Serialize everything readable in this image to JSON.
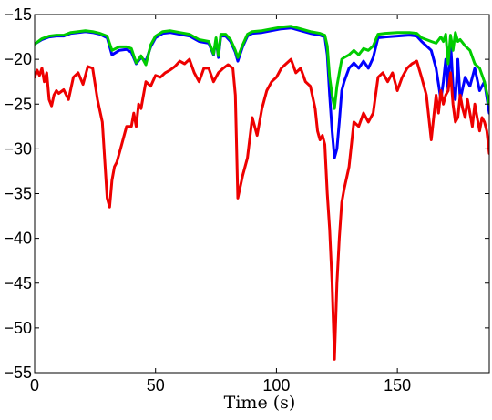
{
  "chart_data": {
    "type": "line",
    "title": "",
    "xlabel": "Time (s)",
    "ylabel": "",
    "xlim": [
      0,
      188
    ],
    "ylim": [
      -55,
      -15
    ],
    "xticks": [
      0,
      50,
      100,
      150
    ],
    "yticks": [
      -55,
      -50,
      -45,
      -40,
      -35,
      -30,
      -25,
      -20,
      -15
    ],
    "grid": false,
    "legend": "none",
    "series": [
      {
        "color": "#0000ff",
        "x": [
          0,
          3,
          6,
          9,
          12,
          15,
          18,
          21,
          24,
          27,
          30,
          32,
          35,
          38,
          40,
          42,
          44,
          46,
          48,
          50,
          53,
          56,
          60,
          64,
          68,
          72,
          74,
          75,
          76,
          77,
          79,
          81,
          83,
          84,
          86,
          88,
          90,
          94,
          98,
          102,
          106,
          110,
          114,
          118,
          120,
          121,
          122,
          123,
          124,
          125,
          126,
          127,
          128,
          130,
          132,
          134,
          136,
          138,
          140,
          142,
          145,
          150,
          155,
          158,
          160,
          162,
          164,
          166,
          168,
          169,
          170,
          171,
          172,
          173,
          174,
          175,
          176,
          178,
          180,
          182,
          184,
          186,
          188
        ],
        "y": [
          -18.3,
          -17.8,
          -17.5,
          -17.4,
          -17.4,
          -17.1,
          -17.0,
          -16.9,
          -17.0,
          -17.2,
          -17.6,
          -19.5,
          -19.0,
          -18.9,
          -19.2,
          -20.5,
          -19.8,
          -20.2,
          -18.6,
          -17.6,
          -17.1,
          -17.0,
          -17.2,
          -17.4,
          -18.0,
          -18.2,
          -19.5,
          -17.8,
          -19.8,
          -17.4,
          -17.4,
          -18.0,
          -19.2,
          -20.2,
          -18.6,
          -17.4,
          -17.1,
          -17.0,
          -16.8,
          -16.6,
          -16.5,
          -16.8,
          -17.1,
          -17.3,
          -17.5,
          -19.5,
          -24.0,
          -28.0,
          -31.0,
          -30.0,
          -27.0,
          -23.5,
          -22.5,
          -21.0,
          -20.4,
          -21.0,
          -20.2,
          -21.0,
          -19.8,
          -17.6,
          -17.5,
          -17.4,
          -17.3,
          -17.4,
          -18.0,
          -18.5,
          -19.0,
          -21.0,
          -24.5,
          -22.5,
          -20.0,
          -23.5,
          -18.0,
          -23.0,
          -24.5,
          -20.0,
          -24.5,
          -22.0,
          -23.0,
          -21.0,
          -23.5,
          -22.5,
          -26.0
        ]
      },
      {
        "color": "#00cc00",
        "x": [
          0,
          3,
          6,
          9,
          12,
          15,
          18,
          21,
          24,
          27,
          30,
          32,
          35,
          38,
          40,
          42,
          44,
          46,
          48,
          50,
          53,
          56,
          60,
          64,
          68,
          72,
          74,
          75,
          76,
          77,
          79,
          81,
          83,
          84,
          86,
          88,
          90,
          94,
          98,
          102,
          106,
          110,
          114,
          118,
          120,
          121,
          122,
          123,
          124,
          125,
          126,
          127,
          128,
          130,
          132,
          134,
          136,
          138,
          140,
          142,
          145,
          150,
          155,
          158,
          160,
          162,
          164,
          166,
          168,
          169,
          170,
          171,
          172,
          173,
          174,
          175,
          176,
          178,
          180,
          182,
          184,
          186,
          188
        ],
        "y": [
          -18.3,
          -17.7,
          -17.4,
          -17.3,
          -17.3,
          -17.0,
          -16.9,
          -16.8,
          -16.9,
          -17.1,
          -17.4,
          -19.0,
          -18.6,
          -18.6,
          -18.8,
          -20.4,
          -19.6,
          -20.6,
          -18.4,
          -17.4,
          -16.9,
          -16.8,
          -17.0,
          -17.2,
          -17.8,
          -18.0,
          -19.4,
          -17.6,
          -19.6,
          -17.2,
          -17.2,
          -17.8,
          -19.0,
          -19.8,
          -18.4,
          -17.2,
          -16.9,
          -16.8,
          -16.6,
          -16.4,
          -16.3,
          -16.6,
          -16.9,
          -17.1,
          -17.3,
          -18.5,
          -22.0,
          -24.0,
          -25.5,
          -23.0,
          -21.5,
          -20.0,
          -19.8,
          -19.5,
          -19.0,
          -19.5,
          -18.8,
          -19.0,
          -18.5,
          -17.2,
          -17.1,
          -17.0,
          -17.0,
          -17.1,
          -17.6,
          -17.8,
          -18.0,
          -18.2,
          -17.5,
          -18.0,
          -17.2,
          -20.5,
          -17.3,
          -19.0,
          -17.0,
          -18.0,
          -17.8,
          -18.5,
          -19.0,
          -20.5,
          -21.0,
          -22.5,
          -25.0
        ]
      },
      {
        "color": "#ee0000",
        "x": [
          0,
          1,
          2,
          3,
          4,
          5,
          6,
          7,
          8,
          9,
          10,
          12,
          14,
          16,
          18,
          20,
          22,
          24,
          26,
          28,
          30,
          31,
          32,
          33,
          34,
          36,
          38,
          40,
          41,
          42,
          43,
          44,
          46,
          48,
          50,
          52,
          54,
          56,
          58,
          60,
          62,
          64,
          66,
          68,
          70,
          72,
          74,
          76,
          78,
          80,
          82,
          83,
          84,
          86,
          88,
          90,
          92,
          94,
          96,
          98,
          100,
          102,
          104,
          106,
          108,
          110,
          112,
          114,
          116,
          117,
          118,
          119,
          120,
          121,
          122,
          123,
          124,
          125,
          126,
          127,
          128,
          130,
          132,
          134,
          136,
          138,
          140,
          142,
          144,
          146,
          148,
          150,
          152,
          154,
          156,
          158,
          160,
          162,
          164,
          166,
          167,
          168,
          169,
          170,
          171,
          172,
          173,
          174,
          175,
          176,
          177,
          178,
          179,
          180,
          181,
          182,
          183,
          184,
          185,
          186,
          187,
          188
        ],
        "y": [
          -22.0,
          -21.2,
          -21.8,
          -21.0,
          -22.5,
          -21.5,
          -24.5,
          -25.2,
          -24.0,
          -23.5,
          -23.8,
          -23.4,
          -24.5,
          -22.0,
          -21.5,
          -22.8,
          -20.8,
          -21.0,
          -24.5,
          -27.0,
          -35.5,
          -36.5,
          -33.5,
          -32.0,
          -31.5,
          -29.5,
          -27.5,
          -27.5,
          -26.0,
          -27.5,
          -25.0,
          -25.5,
          -22.5,
          -23.0,
          -21.8,
          -22.0,
          -21.5,
          -21.2,
          -20.8,
          -20.2,
          -20.5,
          -20.0,
          -21.5,
          -22.5,
          -21.0,
          -21.0,
          -22.5,
          -21.5,
          -21.0,
          -20.6,
          -21.0,
          -24.0,
          -35.5,
          -33.0,
          -31.0,
          -26.5,
          -28.5,
          -25.5,
          -23.5,
          -22.5,
          -22.0,
          -21.0,
          -20.5,
          -20.0,
          -21.5,
          -21.0,
          -22.5,
          -23.0,
          -25.5,
          -28.0,
          -29.0,
          -28.5,
          -29.5,
          -35.0,
          -39.0,
          -45.0,
          -53.5,
          -45.0,
          -40.0,
          -36.0,
          -34.5,
          -32.0,
          -27.0,
          -27.5,
          -26.0,
          -27.0,
          -26.0,
          -22.0,
          -21.5,
          -22.5,
          -21.5,
          -23.5,
          -22.0,
          -21.0,
          -20.5,
          -20.2,
          -22.0,
          -24.0,
          -29.0,
          -24.0,
          -26.0,
          -23.5,
          -25.0,
          -24.0,
          -23.5,
          -21.5,
          -25.0,
          -27.0,
          -26.5,
          -24.0,
          -25.5,
          -26.5,
          -24.5,
          -26.0,
          -27.5,
          -25.0,
          -26.5,
          -28.0,
          -26.5,
          -27.0,
          -28.0,
          -30.5
        ]
      }
    ]
  }
}
